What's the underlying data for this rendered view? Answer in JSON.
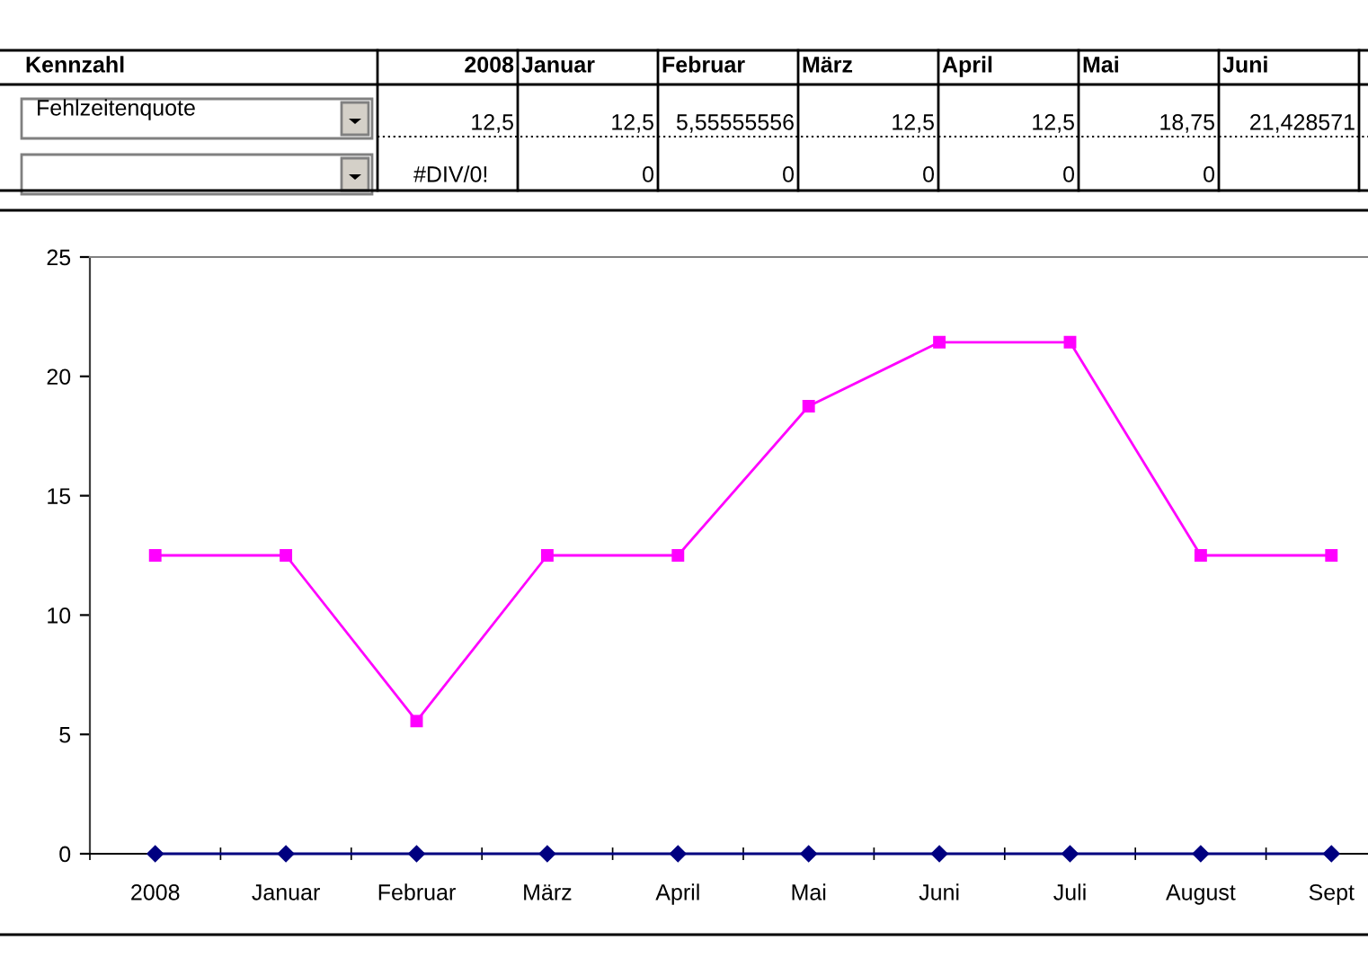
{
  "chart_data": {
    "type": "line",
    "categories": [
      "2008",
      "Januar",
      "Februar",
      "März",
      "April",
      "Mai",
      "Juni",
      "Juli",
      "August",
      "Sept"
    ],
    "legend_title": "Kennzahl",
    "annotations": [
      "12,5",
      "12,5",
      "5,55555556",
      "12,5",
      "12,5",
      "18,75",
      "21,428571",
      "#DIV/0!",
      "0",
      "0",
      "0",
      "0",
      "0"
    ],
    "series": [
      {
        "name": "Fehlzeitenquote",
        "color": "#ff00ff",
        "marker": "square",
        "values": [
          12.5,
          12.5,
          5.56,
          12.5,
          12.5,
          18.75,
          21.43,
          21.43,
          12.5,
          12.5
        ]
      },
      {
        "color": "#000080",
        "marker": "diamond",
        "values": [
          0,
          0,
          0,
          0,
          0,
          0,
          0,
          0,
          0,
          0
        ]
      }
    ],
    "ylim": [
      0,
      25
    ],
    "yticks": [
      0,
      5,
      10,
      15,
      20,
      25
    ],
    "grid": false,
    "legend": false,
    "line_style": "solid"
  }
}
